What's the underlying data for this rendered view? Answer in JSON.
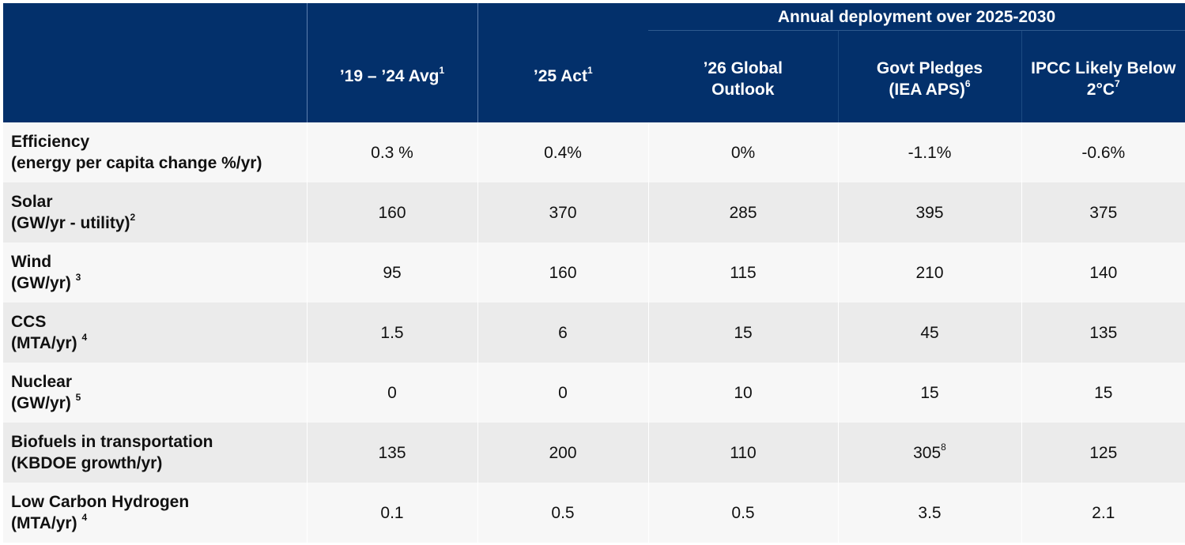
{
  "header": {
    "group_title": "Annual deployment over 2025-2030",
    "col1": {
      "label": "’19 – ’24 Avg",
      "sup": "1"
    },
    "col2": {
      "label": "’25 Act",
      "sup": "1"
    },
    "col3": {
      "line1": "’26 Global",
      "line2": "Outlook"
    },
    "col4": {
      "line1": "Govt Pledges",
      "line2": "(IEA APS)",
      "sup": "6"
    },
    "col5": {
      "line1": "IPCC Likely Below",
      "line2": "2°C",
      "sup": "7"
    }
  },
  "rows": [
    {
      "line1": "Efficiency",
      "line2": "(energy per capita change %/yr)",
      "sup": "",
      "v1": "0.3 %",
      "v2": "0.4%",
      "v3": "0%",
      "v4": "-1.1%",
      "v4sup": "",
      "v5": "-0.6%"
    },
    {
      "line1": "Solar",
      "line2": "(GW/yr - utility)",
      "sup": "2",
      "v1": "160",
      "v2": "370",
      "v3": "285",
      "v4": "395",
      "v4sup": "",
      "v5": "375"
    },
    {
      "line1": "Wind",
      "line2": "(GW/yr)",
      "sup": "3",
      "v1": "95",
      "v2": "160",
      "v3": "115",
      "v4": "210",
      "v4sup": "",
      "v5": "140"
    },
    {
      "line1": "CCS",
      "line2": "(MTA/yr)",
      "sup": "4",
      "v1": "1.5",
      "v2": "6",
      "v3": "15",
      "v4": "45",
      "v4sup": "",
      "v5": "135"
    },
    {
      "line1": "Nuclear",
      "line2": "(GW/yr)",
      "sup": "5",
      "v1": "0",
      "v2": "0",
      "v3": "10",
      "v4": "15",
      "v4sup": "",
      "v5": "15"
    },
    {
      "line1": "Biofuels in transportation",
      "line2": "(KBDOE growth/yr)",
      "sup": "",
      "v1": "135",
      "v2": "200",
      "v3": "110",
      "v4": "305",
      "v4sup": "8",
      "v5": "125"
    },
    {
      "line1": "Low Carbon Hydrogen",
      "line2": "(MTA/yr)",
      "sup": "4",
      "v1": "0.1",
      "v2": "0.5",
      "v3": "0.5",
      "v4": "3.5",
      "v4sup": "",
      "v5": "2.1"
    }
  ],
  "colors": {
    "header_bg": "#03306b",
    "header_text": "#ffffff",
    "row_light": "#f7f7f7",
    "row_dark": "#ebebeb"
  }
}
